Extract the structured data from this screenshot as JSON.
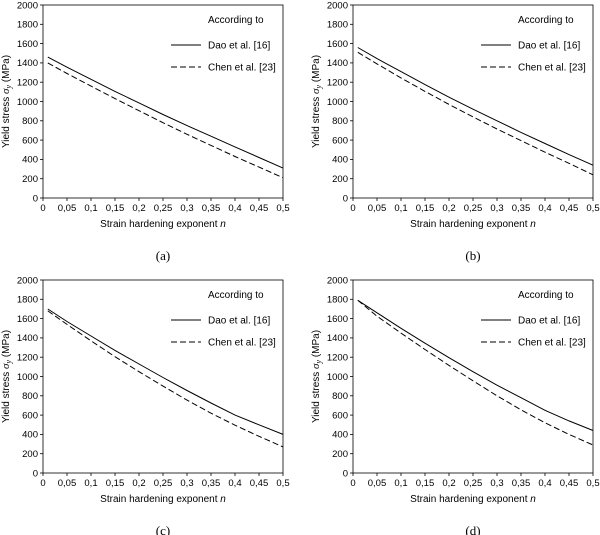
{
  "chart_data": [
    {
      "type": "line",
      "panel_label": "(a)",
      "xlabel": "Strain hardening exponent",
      "xlabel_var": "n",
      "ylabel": "Yield stress",
      "ylabel_sym": "σ",
      "ylabel_sub": "y",
      "ylabel_unit": "(MPa)",
      "xlim": [
        0,
        0.5
      ],
      "ylim": [
        0,
        2000
      ],
      "xticks": [
        "0",
        "0,05",
        "0,1",
        "0,15",
        "0,2",
        "0,25",
        "0,3",
        "0,35",
        "0,4",
        "0,45",
        "0,5"
      ],
      "yticks": [
        "0",
        "200",
        "400",
        "600",
        "800",
        "1000",
        "1200",
        "1400",
        "1600",
        "1800",
        "2000"
      ],
      "legend_title": "According to",
      "grid": false,
      "x": [
        0.01,
        0.05,
        0.1,
        0.15,
        0.2,
        0.25,
        0.3,
        0.35,
        0.4,
        0.45,
        0.5
      ],
      "series": [
        {
          "name": "Dao et al. [16]",
          "style": "solid",
          "values": [
            1460,
            1355,
            1230,
            1105,
            985,
            865,
            750,
            640,
            530,
            420,
            310
          ]
        },
        {
          "name": "Chen et al. [23]",
          "style": "dashed",
          "values": [
            1400,
            1290,
            1160,
            1030,
            905,
            780,
            660,
            545,
            430,
            320,
            210
          ]
        }
      ]
    },
    {
      "type": "line",
      "panel_label": "(b)",
      "xlabel": "Strain hardening exponent",
      "xlabel_var": "n",
      "ylabel": "Yield stress",
      "ylabel_sym": "σ",
      "ylabel_sub": "y",
      "ylabel_unit": "(MPa)",
      "xlim": [
        0,
        0.5
      ],
      "ylim": [
        0,
        2000
      ],
      "xticks": [
        "0",
        "0,05",
        "0,1",
        "0,15",
        "0,2",
        "0,25",
        "0,3",
        "0,35",
        "0,4",
        "0,45",
        "0,5"
      ],
      "yticks": [
        "0",
        "200",
        "400",
        "600",
        "800",
        "1000",
        "1200",
        "1400",
        "1600",
        "1800",
        "2000"
      ],
      "legend_title": "According to",
      "grid": false,
      "x": [
        0.01,
        0.05,
        0.1,
        0.15,
        0.2,
        0.25,
        0.3,
        0.35,
        0.4,
        0.45,
        0.5
      ],
      "series": [
        {
          "name": "Dao et al. [16]",
          "style": "solid",
          "values": [
            1560,
            1445,
            1310,
            1175,
            1045,
            920,
            800,
            680,
            565,
            450,
            340
          ]
        },
        {
          "name": "Chen et al. [23]",
          "style": "dashed",
          "values": [
            1510,
            1390,
            1245,
            1105,
            970,
            840,
            715,
            595,
            475,
            360,
            240
          ]
        }
      ]
    },
    {
      "type": "line",
      "panel_label": "(c)",
      "xlabel": "Strain hardening exponent",
      "xlabel_var": "n",
      "ylabel": "Yield stress",
      "ylabel_sym": "σ",
      "ylabel_sub": "y",
      "ylabel_unit": "(MPa)",
      "xlim": [
        0,
        0.5
      ],
      "ylim": [
        0,
        2000
      ],
      "xticks": [
        "0",
        "0,05",
        "0,1",
        "0,15",
        "0,2",
        "0,25",
        "0,3",
        "0,35",
        "0,4",
        "0,45",
        "0,5"
      ],
      "yticks": [
        "0",
        "200",
        "400",
        "600",
        "800",
        "1000",
        "1200",
        "1400",
        "1600",
        "1800",
        "2000"
      ],
      "legend_title": "According to",
      "grid": false,
      "x": [
        0.01,
        0.05,
        0.1,
        0.15,
        0.2,
        0.25,
        0.3,
        0.35,
        0.4,
        0.45,
        0.5
      ],
      "series": [
        {
          "name": "Dao et al. [16]",
          "style": "solid",
          "values": [
            1700,
            1570,
            1420,
            1270,
            1130,
            990,
            855,
            725,
            600,
            500,
            400
          ]
        },
        {
          "name": "Chen et al. [23]",
          "style": "dashed",
          "values": [
            1680,
            1540,
            1370,
            1205,
            1050,
            900,
            755,
            620,
            495,
            380,
            270
          ]
        }
      ]
    },
    {
      "type": "line",
      "panel_label": "(d)",
      "xlabel": "Strain hardening exponent",
      "xlabel_var": "n",
      "ylabel": "Yield stress",
      "ylabel_sym": "σ",
      "ylabel_sub": "y",
      "ylabel_unit": "(MPa)",
      "xlim": [
        0,
        0.5
      ],
      "ylim": [
        0,
        2000
      ],
      "xticks": [
        "0",
        "0,05",
        "0,1",
        "0,15",
        "0,2",
        "0,25",
        "0,3",
        "0,35",
        "0,4",
        "0,45",
        "0,5"
      ],
      "yticks": [
        "0",
        "200",
        "400",
        "600",
        "800",
        "1000",
        "1200",
        "1400",
        "1600",
        "1800",
        "2000"
      ],
      "legend_title": "According to",
      "grid": false,
      "x": [
        0.01,
        0.05,
        0.1,
        0.15,
        0.2,
        0.25,
        0.3,
        0.35,
        0.4,
        0.45,
        0.5
      ],
      "series": [
        {
          "name": "Dao et al. [16]",
          "style": "solid",
          "values": [
            1790,
            1660,
            1500,
            1345,
            1195,
            1050,
            910,
            780,
            650,
            540,
            440
          ]
        },
        {
          "name": "Chen et al. [23]",
          "style": "dashed",
          "values": [
            1790,
            1625,
            1450,
            1280,
            1115,
            955,
            800,
            655,
            520,
            400,
            290
          ]
        }
      ]
    }
  ]
}
